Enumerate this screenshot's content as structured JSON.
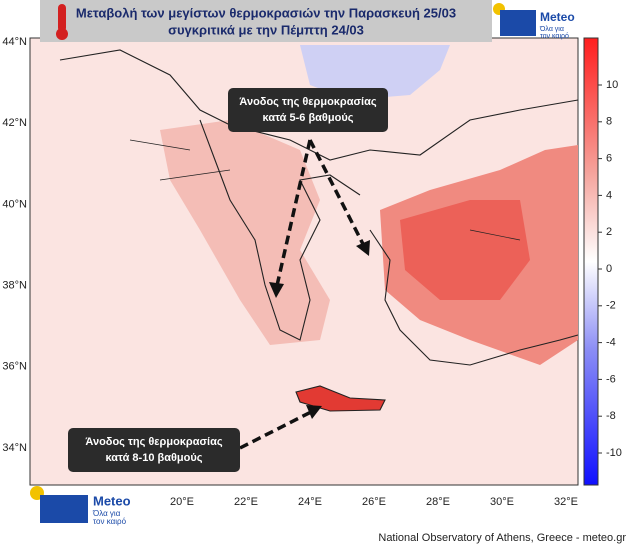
{
  "header": {
    "title": [
      "Μεταβολή των μεγίστων θερμοκρασιών την Παρασκευή 25/03",
      "συγκριτικά με την Πέμπτη 24/03"
    ]
  },
  "logo": {
    "name": "Meteo",
    "tagline": [
      "Όλα για",
      "τον καιρό"
    ]
  },
  "map": {
    "lat_labels": [
      "44°N",
      "42°N",
      "40°N",
      "38°N",
      "36°N",
      "34°N"
    ],
    "lon_labels": [
      "20°E",
      "22°E",
      "24°E",
      "26°E",
      "28°E",
      "30°E",
      "32°E"
    ],
    "annotations": [
      [
        "Άνοδος της θερμοκρασίας",
        "κατά 5-6 βαθμούς"
      ],
      [
        "Άνοδος της θερμοκρασίας",
        "κατά 8-10 βαθμούς"
      ]
    ]
  },
  "colorbar": {
    "ticks": [
      10,
      8,
      6,
      4,
      2,
      0,
      -2,
      -4,
      -6,
      -8,
      -10
    ]
  },
  "footer": "National Observatory of Athens, Greece - meteo.gr"
}
